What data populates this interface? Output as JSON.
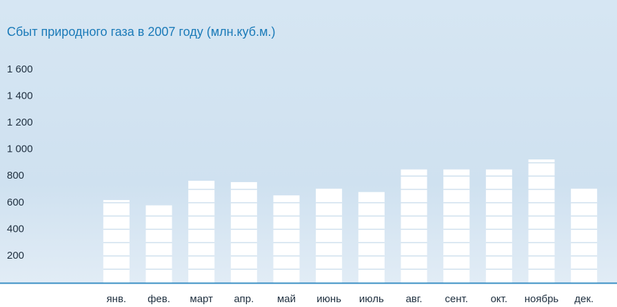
{
  "chart_data": {
    "type": "bar",
    "title": "Сбыт природного газа в 2007 году (млн.куб.м.)",
    "categories": [
      "янв.",
      "фев.",
      "март",
      "апр.",
      "май",
      "июнь",
      "июль",
      "авг.",
      "сент.",
      "окт.",
      "ноябрь",
      "дек."
    ],
    "values": [
      620,
      580,
      765,
      755,
      655,
      705,
      680,
      850,
      850,
      850,
      925,
      705
    ],
    "color": "#ffffff",
    "ylim": [
      0,
      1600
    ],
    "yticks": [
      {
        "value": 200,
        "label": "200"
      },
      {
        "value": 400,
        "label": "400"
      },
      {
        "value": 600,
        "label": "600"
      },
      {
        "value": 800,
        "label": "800"
      },
      {
        "value": 1000,
        "label": "1 000"
      },
      {
        "value": 1200,
        "label": "1 200"
      },
      {
        "value": 1400,
        "label": "1 400"
      },
      {
        "value": 1600,
        "label": "1 600"
      }
    ],
    "grid": false
  }
}
